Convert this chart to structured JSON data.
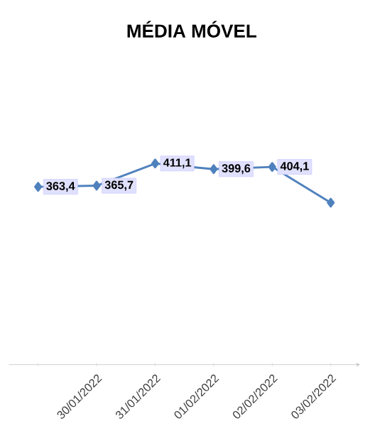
{
  "chart_data": {
    "type": "line",
    "title": "MÉDIA MÓVEL",
    "categories": [
      null,
      "30/01/2022",
      "31/01/2022",
      "01/02/2022",
      "02/02/2022",
      "03/02/2022"
    ],
    "series": [
      {
        "color": "#4f81bd",
        "values": [
          363.4,
          365.7,
          411.1,
          399.6,
          404.1,
          331
        ],
        "value_labels": [
          "363,4",
          "365,7",
          "411,1",
          "399,6",
          "404,1",
          null
        ]
      }
    ],
    "tick_labels": "x",
    "marker": "diamond",
    "line_style": "solid"
  }
}
